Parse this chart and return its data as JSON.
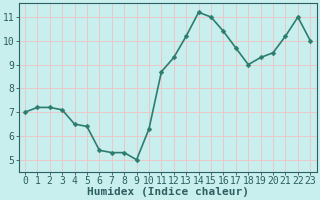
{
  "x": [
    0,
    1,
    2,
    3,
    4,
    5,
    6,
    7,
    8,
    9,
    10,
    11,
    12,
    13,
    14,
    15,
    16,
    17,
    18,
    19,
    20,
    21,
    22,
    23
  ],
  "y": [
    7.0,
    7.2,
    7.2,
    7.1,
    6.5,
    6.4,
    5.4,
    5.3,
    5.3,
    5.0,
    6.3,
    8.7,
    9.3,
    10.2,
    11.2,
    11.0,
    10.4,
    9.7,
    9.0,
    9.3,
    9.5,
    10.2,
    11.0,
    10.0
  ],
  "line_color": "#2d7d6e",
  "marker": "D",
  "marker_size": 2.5,
  "bg_color": "#c8eeee",
  "grid_color": "#e8c8c8",
  "xlabel": "Humidex (Indice chaleur)",
  "xlabel_fontsize": 8,
  "ylabel_ticks": [
    5,
    6,
    7,
    8,
    9,
    10,
    11
  ],
  "xtick_labels": [
    "0",
    "1",
    "2",
    "3",
    "4",
    "5",
    "6",
    "7",
    "8",
    "9",
    "10",
    "11",
    "12",
    "13",
    "14",
    "15",
    "16",
    "17",
    "18",
    "19",
    "20",
    "21",
    "22",
    "23"
  ],
  "ylim": [
    4.5,
    11.6
  ],
  "xlim": [
    -0.5,
    23.5
  ],
  "tick_fontsize": 7,
  "line_width": 1.2,
  "text_color": "#2d6060"
}
